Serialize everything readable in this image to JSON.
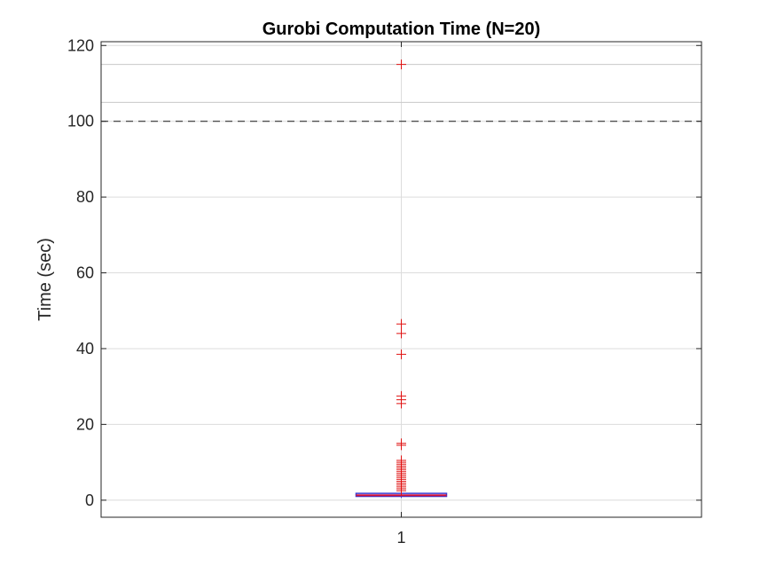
{
  "chart_data": {
    "type": "box",
    "title": "Gurobi Computation Time (N=20)",
    "xlabel": "",
    "ylabel": "Time (sec)",
    "categories": [
      "1"
    ],
    "ylim": [
      -4.5,
      121
    ],
    "yticks": [
      0,
      20,
      40,
      60,
      80,
      100,
      120
    ],
    "grid": true,
    "reference_lines": [
      {
        "y": 115,
        "style": "solid",
        "color": "#c8c8c8"
      },
      {
        "y": 105,
        "style": "solid",
        "color": "#c8c8c8"
      },
      {
        "y": 100,
        "style": "dashed",
        "color": "#333333"
      }
    ],
    "box": {
      "category": "1",
      "q1": 1.0,
      "median": 1.3,
      "q3": 1.8,
      "whisker_low": 0.6,
      "whisker_high": 2.0
    },
    "outliers": [
      115,
      46.5,
      44.0,
      38.5,
      27.5,
      26.5,
      25.5,
      15.0,
      14.5,
      10.5,
      10.0,
      9.5,
      9.0,
      8.5,
      8.0,
      7.5,
      7.0,
      6.5,
      6.0,
      5.5,
      5.0,
      4.5,
      4.0,
      3.5,
      3.0,
      2.5
    ],
    "colors": {
      "box": "#3a3ad0",
      "median": "#d0103a",
      "outlier": "#e01010",
      "axis": "#262626",
      "grid": "#dcdcdc"
    }
  }
}
